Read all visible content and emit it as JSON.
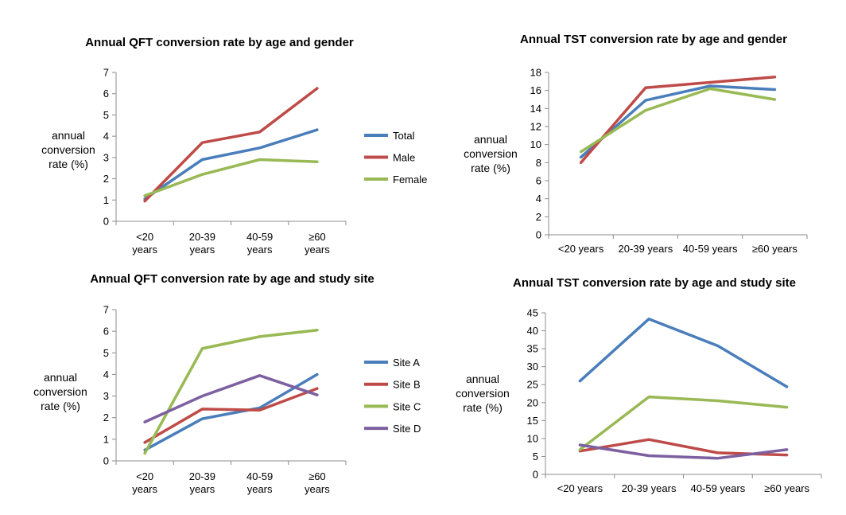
{
  "colors": {
    "blue": "#4a7ebb",
    "red": "#be4b48",
    "green": "#98b954",
    "purple": "#7d60a0",
    "axis": "#8c8c8c"
  },
  "chart_data": [
    {
      "id": "qft_gender",
      "type": "line",
      "title": "Annual QFT conversion rate by age and gender",
      "ylabel": [
        "annual",
        "conversion",
        "rate (%)"
      ],
      "categories": [
        [
          "<20",
          "years"
        ],
        [
          "20-39",
          "years"
        ],
        [
          "40-59",
          "years"
        ],
        [
          "≥60",
          "years"
        ]
      ],
      "ylim": [
        0,
        7
      ],
      "yticks": [
        0,
        1,
        2,
        3,
        4,
        5,
        6,
        7
      ],
      "legend": "right",
      "series": [
        {
          "name": "Total",
          "color": "blue",
          "values": [
            1.05,
            2.9,
            3.45,
            4.3
          ]
        },
        {
          "name": "Male",
          "color": "red",
          "values": [
            0.95,
            3.7,
            4.2,
            6.25
          ]
        },
        {
          "name": "Female",
          "color": "green",
          "values": [
            1.2,
            2.2,
            2.9,
            2.8
          ]
        }
      ]
    },
    {
      "id": "tst_gender",
      "type": "line",
      "title": "Annual TST conversion rate by age and gender",
      "ylabel": [
        "annual",
        "conversion",
        "rate (%)"
      ],
      "categories": [
        [
          "<20 years"
        ],
        [
          "20-39 years"
        ],
        [
          "40-59 years"
        ],
        [
          "≥60 years"
        ]
      ],
      "ylim": [
        0,
        18
      ],
      "yticks": [
        0,
        2,
        4,
        6,
        8,
        10,
        12,
        14,
        16,
        18
      ],
      "legend": "none",
      "series": [
        {
          "name": "",
          "color": "blue",
          "values": [
            8.6,
            14.9,
            16.5,
            16.1
          ]
        },
        {
          "name": "",
          "color": "red",
          "values": [
            8.0,
            16.3,
            16.9,
            17.5
          ]
        },
        {
          "name": "",
          "color": "green",
          "values": [
            9.2,
            13.8,
            16.2,
            15.0
          ]
        }
      ]
    },
    {
      "id": "qft_site",
      "type": "line",
      "title": "Annual QFT conversion rate by age and study site",
      "ylabel": [
        "annual",
        "conversion",
        "rate (%)"
      ],
      "categories": [
        [
          "<20",
          "years"
        ],
        [
          "20-39",
          "years"
        ],
        [
          "40-59",
          "years"
        ],
        [
          "≥60",
          "years"
        ]
      ],
      "ylim": [
        0,
        7
      ],
      "yticks": [
        0,
        1,
        2,
        3,
        4,
        5,
        6,
        7
      ],
      "legend": "right",
      "series": [
        {
          "name": "Site A",
          "color": "blue",
          "values": [
            0.5,
            1.95,
            2.45,
            4.0
          ]
        },
        {
          "name": "Site B",
          "color": "red",
          "values": [
            0.85,
            2.4,
            2.35,
            3.35
          ]
        },
        {
          "name": "Site C",
          "color": "green",
          "values": [
            0.35,
            5.2,
            5.75,
            6.05
          ]
        },
        {
          "name": "Site D",
          "color": "purple",
          "values": [
            1.8,
            3.0,
            3.95,
            3.05
          ]
        }
      ]
    },
    {
      "id": "tst_site",
      "type": "line",
      "title": "Annual TST conversion rate by age and study site",
      "ylabel": [
        "annual",
        "conversion",
        "rate (%)"
      ],
      "categories": [
        [
          "<20 years"
        ],
        [
          "20-39 years"
        ],
        [
          "40-59 years"
        ],
        [
          "≥60 years"
        ]
      ],
      "ylim": [
        0,
        45
      ],
      "yticks": [
        0,
        5,
        10,
        15,
        20,
        25,
        30,
        35,
        40,
        45
      ],
      "legend": "none",
      "series": [
        {
          "name": "",
          "color": "blue",
          "values": [
            26.0,
            43.3,
            35.8,
            24.4
          ]
        },
        {
          "name": "",
          "color": "red",
          "values": [
            6.5,
            9.7,
            6.0,
            5.4
          ]
        },
        {
          "name": "",
          "color": "green",
          "values": [
            6.9,
            21.6,
            20.5,
            18.7
          ]
        },
        {
          "name": "",
          "color": "purple",
          "values": [
            8.2,
            5.2,
            4.5,
            6.9
          ]
        }
      ]
    }
  ]
}
